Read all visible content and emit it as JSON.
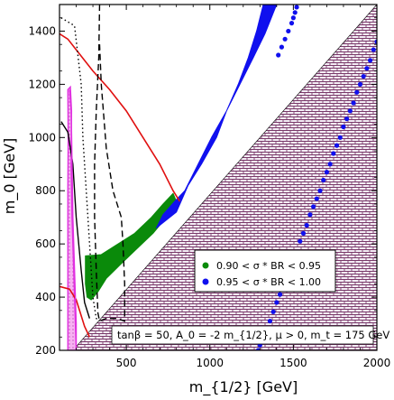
{
  "chart_data": {
    "type": "scatter",
    "xlabel": "m_{1/2} [GeV]",
    "ylabel": "m_0 [GeV]",
    "xlim": [
      100,
      2000
    ],
    "ylim": [
      200,
      1500
    ],
    "x_ticks": [
      500,
      1000,
      1500,
      2000
    ],
    "x_tick_labels": [
      "500",
      "1000",
      "1500",
      "2000"
    ],
    "y_ticks": [
      200,
      400,
      600,
      800,
      1000,
      1200,
      1400
    ],
    "y_tick_labels": [
      "200",
      "400",
      "600",
      "800",
      "1000",
      "1200",
      "1400"
    ],
    "annotation": "tanβ = 50, A_0 = -2 m_{1/2}, μ > 0, m_t = 175 GeV",
    "legend_position": "lower-right",
    "series": [
      {
        "name": "0.90 < σ * BR < 0.95",
        "color": "#0a8a0a",
        "kind": "band",
        "upper": [
          [
            255,
            555
          ],
          [
            350,
            560
          ],
          [
            450,
            600
          ],
          [
            550,
            640
          ],
          [
            650,
            700
          ],
          [
            720,
            750
          ],
          [
            780,
            790
          ]
        ],
        "lower": [
          [
            800,
            760
          ],
          [
            740,
            700
          ],
          [
            660,
            640
          ],
          [
            560,
            580
          ],
          [
            460,
            520
          ],
          [
            380,
            470
          ],
          [
            330,
            420
          ],
          [
            290,
            390
          ],
          [
            265,
            400
          ],
          [
            255,
            450
          ]
        ]
      },
      {
        "name": "0.95 < σ * BR < 1.00",
        "color": "#1010ee",
        "kind": "band",
        "upper": [
          [
            870,
            820
          ],
          [
            950,
            900
          ],
          [
            1040,
            1000
          ],
          [
            1100,
            1100
          ],
          [
            1170,
            1200
          ],
          [
            1230,
            1300
          ],
          [
            1280,
            1400
          ],
          [
            1320,
            1500
          ]
        ],
        "lower": [
          [
            1400,
            1500
          ],
          [
            1330,
            1390
          ],
          [
            1260,
            1300
          ],
          [
            1180,
            1200
          ],
          [
            1100,
            1100
          ],
          [
            1010,
            1000
          ],
          [
            930,
            900
          ],
          [
            850,
            800
          ],
          [
            790,
            760
          ],
          [
            720,
            710
          ],
          [
            680,
            660
          ],
          [
            720,
            680
          ],
          [
            800,
            720
          ]
        ]
      },
      {
        "name": "",
        "color": "#1010ee",
        "kind": "points",
        "points": [
          [
            1410,
            1310
          ],
          [
            1430,
            1340
          ],
          [
            1450,
            1370
          ],
          [
            1470,
            1400
          ],
          [
            1490,
            1430
          ],
          [
            1500,
            1450
          ],
          [
            1510,
            1470
          ],
          [
            1520,
            1490
          ],
          [
            1290,
            200
          ],
          [
            1300,
            220
          ],
          [
            1320,
            250
          ],
          [
            1340,
            280
          ],
          [
            1360,
            310
          ],
          [
            1380,
            345
          ],
          [
            1400,
            380
          ],
          [
            1420,
            410
          ],
          [
            1440,
            440
          ],
          [
            1460,
            480
          ],
          [
            1480,
            510
          ],
          [
            1500,
            540
          ],
          [
            1520,
            570
          ],
          [
            1540,
            610
          ],
          [
            1560,
            640
          ],
          [
            1580,
            670
          ],
          [
            1600,
            710
          ],
          [
            1620,
            740
          ],
          [
            1640,
            770
          ],
          [
            1660,
            800
          ],
          [
            1680,
            840
          ],
          [
            1700,
            870
          ],
          [
            1720,
            900
          ],
          [
            1740,
            940
          ],
          [
            1760,
            970
          ],
          [
            1780,
            1000
          ],
          [
            1800,
            1040
          ],
          [
            1820,
            1070
          ],
          [
            1840,
            1100
          ],
          [
            1860,
            1130
          ],
          [
            1880,
            1170
          ],
          [
            1900,
            1200
          ],
          [
            1920,
            1230
          ],
          [
            1940,
            1260
          ],
          [
            1960,
            1290
          ],
          [
            1980,
            1330
          ],
          [
            2000,
            1360
          ]
        ]
      }
    ],
    "curves": [
      {
        "style": "solid",
        "color": "#e01010",
        "points": [
          [
            100,
            1390
          ],
          [
            150,
            1370
          ],
          [
            200,
            1330
          ],
          [
            300,
            1250
          ],
          [
            400,
            1180
          ],
          [
            500,
            1100
          ],
          [
            600,
            1000
          ],
          [
            700,
            900
          ],
          [
            780,
            800
          ],
          [
            820,
            760
          ]
        ]
      },
      {
        "style": "solid",
        "color": "#e01010",
        "points": [
          [
            100,
            440
          ],
          [
            160,
            430
          ],
          [
            200,
            390
          ],
          [
            250,
            290
          ],
          [
            280,
            250
          ]
        ]
      },
      {
        "style": "dashed",
        "color": "#000000",
        "points": [
          [
            340,
            1500
          ],
          [
            335,
            1300
          ],
          [
            320,
            1100
          ],
          [
            310,
            900
          ],
          [
            310,
            700
          ],
          [
            320,
            500
          ],
          [
            330,
            340
          ],
          [
            340,
            310
          ],
          [
            380,
            320
          ],
          [
            440,
            320
          ],
          [
            490,
            310
          ],
          [
            490,
            450
          ],
          [
            480,
            600
          ],
          [
            470,
            700
          ],
          [
            420,
            800
          ],
          [
            380,
            960
          ],
          [
            350,
            1200
          ],
          [
            340,
            1350
          ]
        ]
      },
      {
        "style": "dotted",
        "color": "#000000",
        "points": [
          [
            110,
            1450
          ],
          [
            190,
            1420
          ],
          [
            230,
            1200
          ],
          [
            240,
            1000
          ],
          [
            260,
            800
          ],
          [
            280,
            600
          ],
          [
            300,
            400
          ],
          [
            320,
            320
          ],
          [
            340,
            310
          ]
        ]
      },
      {
        "style": "solid",
        "color": "#000000",
        "points": [
          [
            110,
            1060
          ],
          [
            150,
            1020
          ],
          [
            180,
            900
          ],
          [
            200,
            700
          ],
          [
            230,
            500
          ],
          [
            250,
            380
          ],
          [
            280,
            320
          ]
        ]
      },
      {
        "style": "solid",
        "color": "#e030e0",
        "points": [
          [
            160,
            1180
          ],
          [
            170,
            1100
          ],
          [
            175,
            900
          ],
          [
            180,
            700
          ],
          [
            190,
            500
          ],
          [
            200,
            300
          ],
          [
            200,
            200
          ]
        ]
      }
    ]
  }
}
